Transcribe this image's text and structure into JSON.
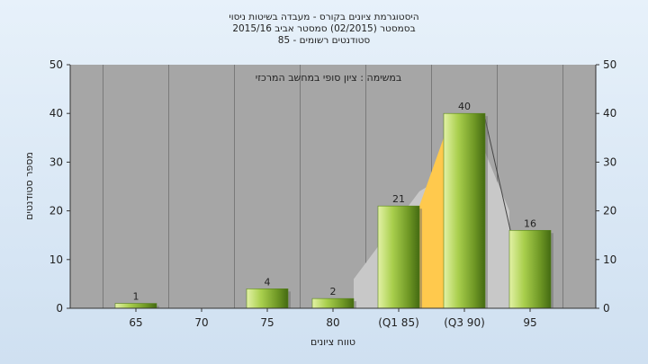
{
  "chart_data": {
    "type": "bar",
    "title_lines": [
      "היסטוגרמת ציונים בקורס - מעבדה בשיטות ניסוי",
      "בסמסטר  (02/2015)  סמסטר אביב 2015/16",
      "סטודנטים רשומים - 85"
    ],
    "annotation": "במשימה : ציון סופי במחשב המרכזי",
    "categories": [
      "65",
      "70",
      "75",
      "80",
      "(Q1 85)",
      "(Q3 90)",
      "95"
    ],
    "values": [
      1,
      0,
      4,
      2,
      21,
      40,
      16
    ],
    "data_labels": [
      "1",
      "",
      "4",
      "2",
      "21",
      "40",
      "16"
    ],
    "xlabel": "טווח ציונים",
    "ylabel": "מספר סטודנטים",
    "ylim": [
      0,
      50
    ],
    "yticks": [
      "0",
      "10",
      "20",
      "30",
      "40",
      "50"
    ],
    "grid": "vertical",
    "legend": "none",
    "colors": {
      "background": "#e3eef8",
      "plot_area": "#a6a6a6",
      "bar_light": "#c7e07a",
      "bar_mid": "#98c03e",
      "bar_dark": "#4f7a17",
      "box_band": "#ffc94d",
      "box_outline": "#c8c8c8",
      "grid": "#7a7a7a"
    }
  }
}
